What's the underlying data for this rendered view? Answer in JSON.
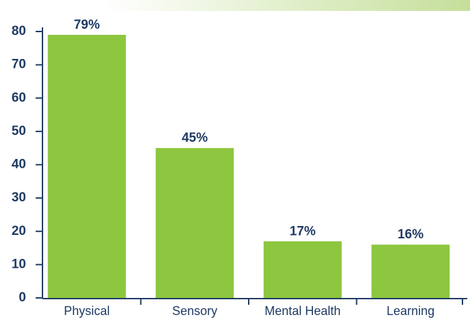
{
  "chart_data": {
    "type": "bar",
    "categories": [
      "Physical",
      "Sensory",
      "Mental Health",
      "Learning"
    ],
    "values": [
      79,
      45,
      17,
      16
    ],
    "value_labels": [
      "79%",
      "45%",
      "17%",
      "16%"
    ],
    "color": "#8dc63f",
    "ylim": [
      0,
      80
    ],
    "yticks": [
      0,
      10,
      20,
      30,
      40,
      50,
      60,
      70,
      80
    ],
    "grid": false
  }
}
